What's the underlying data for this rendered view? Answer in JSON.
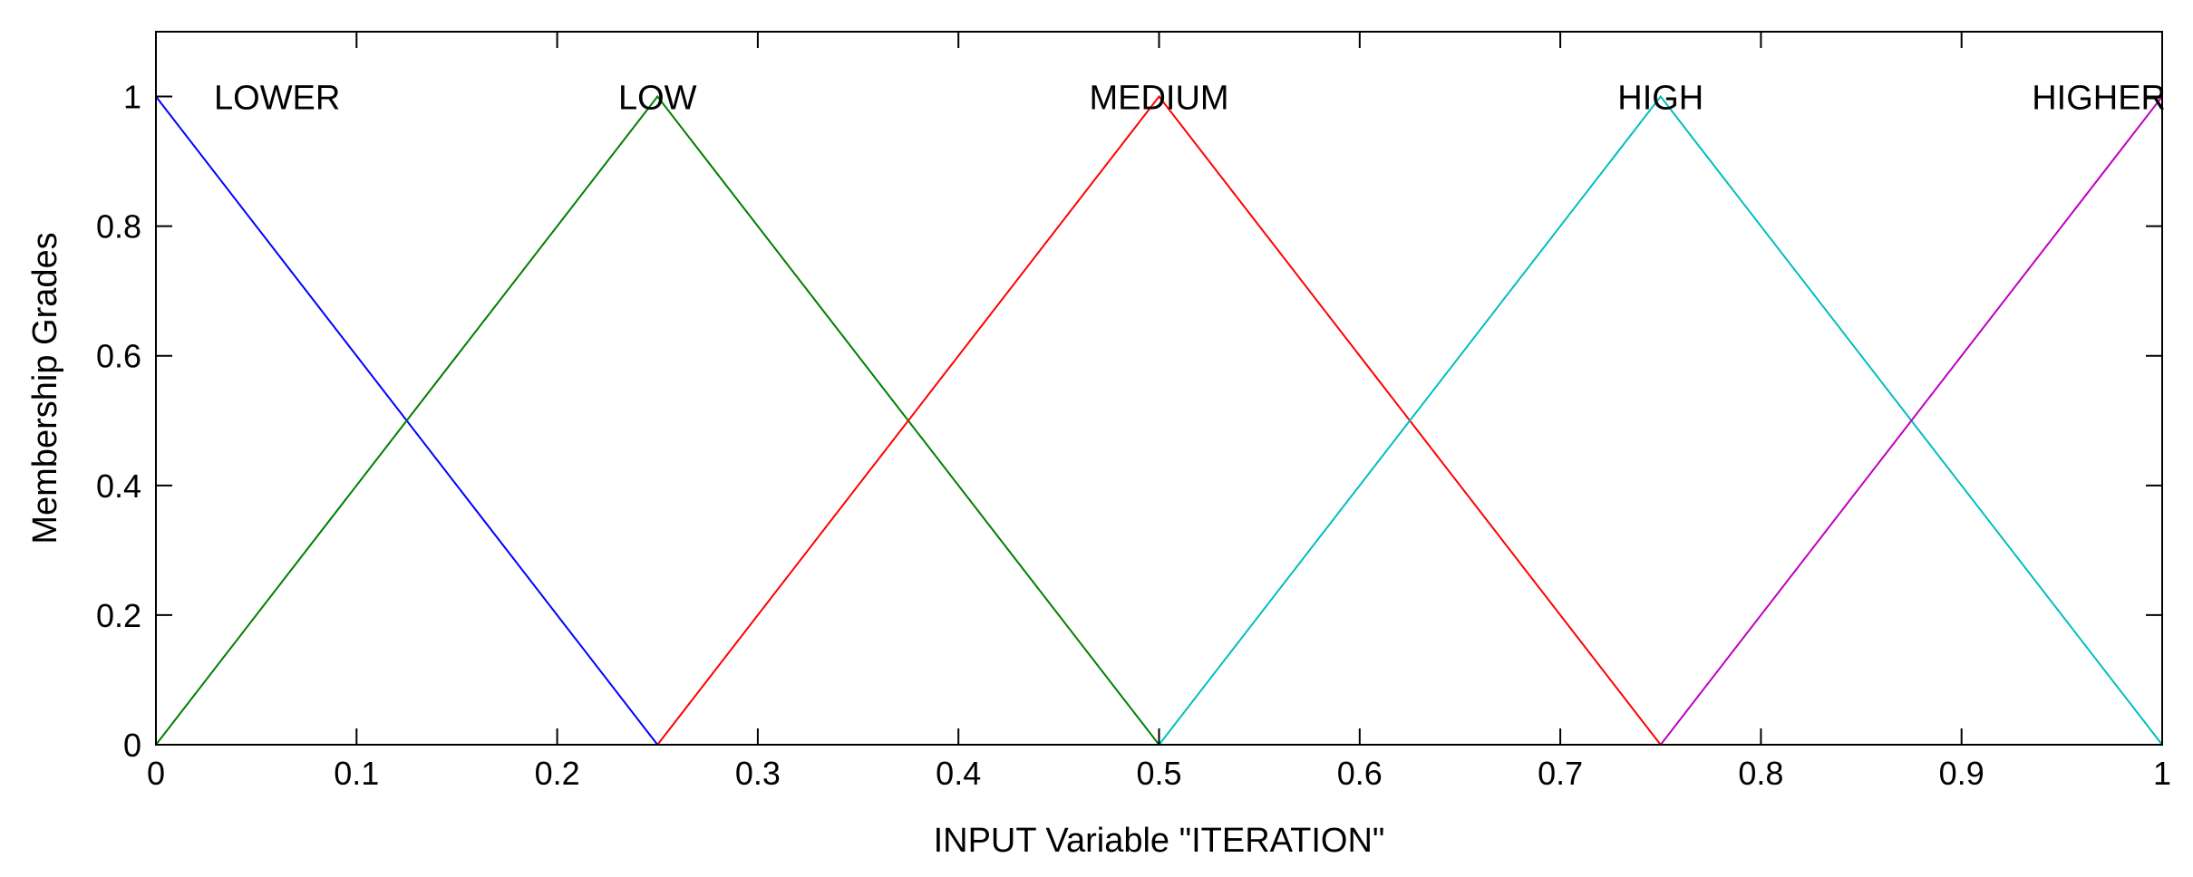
{
  "chart_data": {
    "type": "line",
    "title": "",
    "xlabel": "INPUT Variable \"ITERATION\"",
    "ylabel": "Membership Grades",
    "xlim": [
      0,
      1
    ],
    "ylim": [
      0,
      1.1
    ],
    "grid": false,
    "legend": "none",
    "x_ticks": [
      "0",
      "0.1",
      "0.2",
      "0.3",
      "0.4",
      "0.5",
      "0.6",
      "0.7",
      "0.8",
      "0.9",
      "1"
    ],
    "y_ticks": [
      "0",
      "0.2",
      "0.4",
      "0.6",
      "0.8",
      "1"
    ],
    "series": [
      {
        "name": "LOWER",
        "color": "#0000ff",
        "x": [
          0,
          0.25,
          1
        ],
        "y": [
          1,
          0,
          0
        ]
      },
      {
        "name": "LOW",
        "color": "#007f00",
        "x": [
          0,
          0.25,
          0.5,
          1
        ],
        "y": [
          0,
          1,
          0,
          0
        ]
      },
      {
        "name": "MEDIUM",
        "color": "#ff0000",
        "x": [
          0,
          0.25,
          0.5,
          0.75,
          1
        ],
        "y": [
          0,
          0,
          1,
          0,
          0
        ]
      },
      {
        "name": "HIGH",
        "color": "#00bfbf",
        "x": [
          0,
          0.5,
          0.75,
          1
        ],
        "y": [
          0,
          0,
          1,
          0
        ]
      },
      {
        "name": "HIGHER",
        "color": "#bf00bf",
        "x": [
          0,
          0.75,
          1
        ],
        "y": [
          0,
          0,
          1
        ]
      }
    ]
  }
}
